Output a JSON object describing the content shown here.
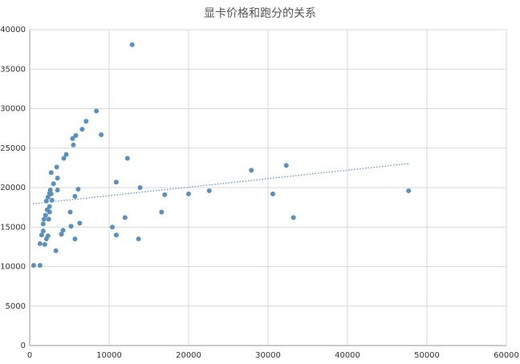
{
  "chart_data": {
    "type": "scatter",
    "title": "显卡价格和跑分的关系",
    "x": [
      500,
      1300,
      1300,
      1500,
      1700,
      1700,
      1900,
      1800,
      2000,
      2100,
      2300,
      2200,
      2100,
      2300,
      2400,
      2500,
      2500,
      2500,
      2600,
      2700,
      2800,
      2700,
      3000,
      3400,
      3500,
      3500,
      3300,
      4000,
      4200,
      4300,
      4600,
      5100,
      5200,
      5400,
      5500,
      5700,
      5700,
      5800,
      6100,
      6300,
      6600,
      7100,
      8400,
      9000,
      10400,
      10900,
      10900,
      12000,
      12300,
      12900,
      13700,
      13900,
      16600,
      17000,
      20000,
      22600,
      27900,
      30600,
      32300,
      33200,
      47700
    ],
    "values": [
      10150,
      10150,
      12900,
      14000,
      14500,
      15400,
      12800,
      16000,
      16500,
      13500,
      13900,
      17200,
      18300,
      18800,
      16000,
      16900,
      17600,
      19300,
      19700,
      19200,
      18400,
      21900,
      20500,
      22600,
      19700,
      21200,
      12000,
      14100,
      14600,
      23700,
      24200,
      16900,
      15100,
      26200,
      25400,
      18900,
      13500,
      26600,
      19800,
      15500,
      27400,
      28400,
      29700,
      26700,
      15000,
      14000,
      20700,
      16200,
      23700,
      38100,
      13500,
      20000,
      16900,
      19100,
      19200,
      19600,
      22200,
      19200,
      22800,
      16200,
      19600
    ],
    "color": "#5b8fbd",
    "trendline": {
      "x": [
        400,
        47800
      ],
      "y": [
        17950,
        23050
      ],
      "color": "#5b8fbd"
    },
    "xlim": [
      0,
      60000
    ],
    "xticks": [
      0,
      10000,
      20000,
      30000,
      40000,
      50000,
      60000
    ],
    "ylim": [
      0,
      40000
    ],
    "yticks": [
      0,
      5000,
      10000,
      15000,
      20000,
      25000,
      30000,
      35000,
      40000
    ],
    "grid": true
  }
}
